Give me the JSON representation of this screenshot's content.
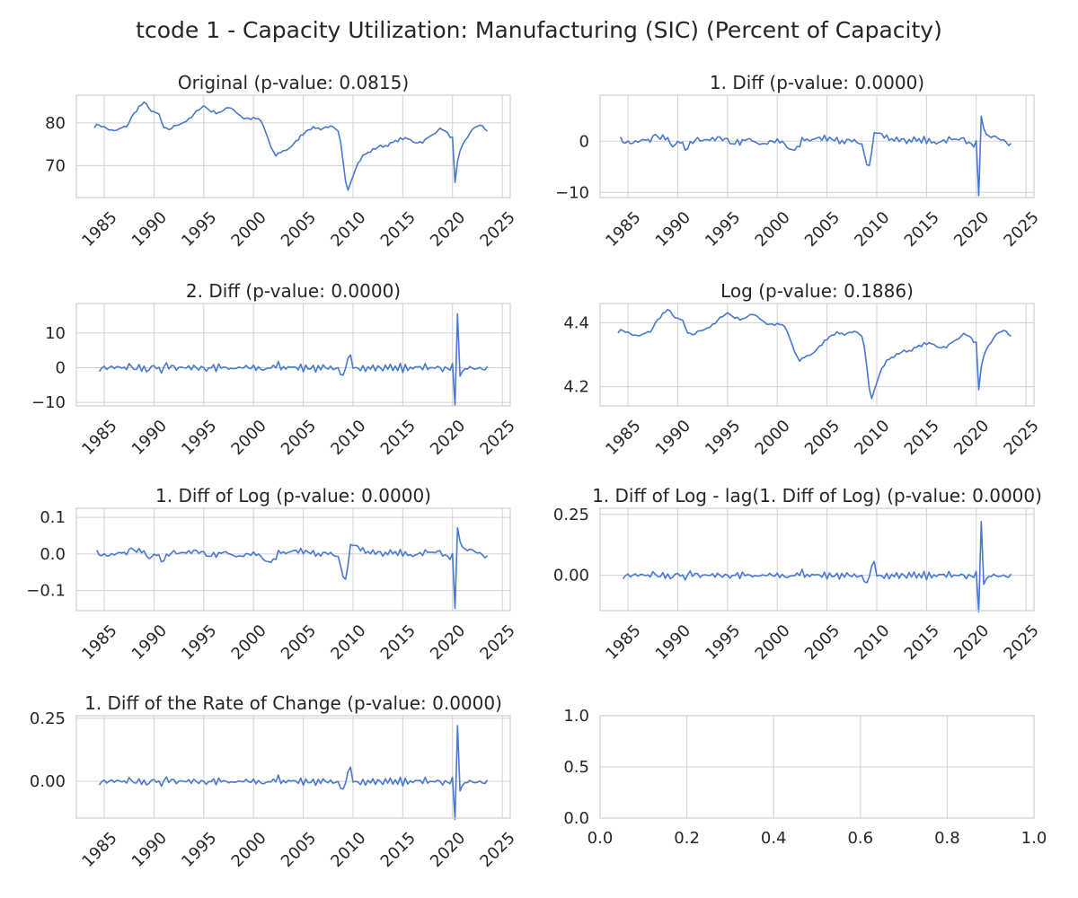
{
  "figure_title": "tcode 1 - Capacity Utilization: Manufacturing (SIC) (Percent of Capacity)",
  "colors": {
    "line": "#4878cf",
    "grid": "#d0d0d0",
    "frame": "#cfcfcf",
    "text": "#262626"
  },
  "chart_data": [
    {
      "type": "line",
      "title": "Original (p-value: 0.0815)",
      "xlim": [
        1982.2,
        2025.8
      ],
      "ylim": [
        62.5,
        86.5
      ],
      "xticks": [
        1985,
        1990,
        1995,
        2000,
        2005,
        2010,
        2015,
        2020,
        2025
      ],
      "yticks": [
        70,
        80
      ],
      "yticklabels": [
        "70",
        "80"
      ],
      "series": [
        {
          "style": "original"
        }
      ]
    },
    {
      "type": "line",
      "title": "1. Diff (p-value: 0.0000)",
      "xlim": [
        1982.2,
        2025.8
      ],
      "ylim": [
        -11,
        9
      ],
      "xticks": [
        1985,
        1990,
        1995,
        2000,
        2005,
        2010,
        2015,
        2020,
        2025
      ],
      "yticks": [
        -10,
        0
      ],
      "yticklabels": [
        "−10",
        "0"
      ],
      "series": [
        {
          "style": "diff"
        }
      ]
    },
    {
      "type": "line",
      "title": "2. Diff (p-value: 0.0000)",
      "xlim": [
        1982.2,
        2025.8
      ],
      "ylim": [
        -11,
        18.5
      ],
      "xticks": [
        1985,
        1990,
        1995,
        2000,
        2005,
        2010,
        2015,
        2020,
        2025
      ],
      "yticks": [
        -10,
        0,
        10
      ],
      "yticklabels": [
        "−10",
        "0",
        "10"
      ],
      "series": [
        {
          "style": "diff2"
        }
      ]
    },
    {
      "type": "line",
      "title": "Log (p-value: 0.1886)",
      "xlim": [
        1982.2,
        2025.8
      ],
      "ylim": [
        4.14,
        4.46
      ],
      "xticks": [
        1985,
        1990,
        1995,
        2000,
        2005,
        2010,
        2015,
        2020,
        2025
      ],
      "yticks": [
        4.2,
        4.4
      ],
      "yticklabels": [
        "4.2",
        "4.4"
      ],
      "series": [
        {
          "style": "log"
        }
      ]
    },
    {
      "type": "line",
      "title": "1. Diff of Log (p-value: 0.0000)",
      "xlim": [
        1982.2,
        2025.8
      ],
      "ylim": [
        -0.155,
        0.125
      ],
      "xticks": [
        1985,
        1990,
        1995,
        2000,
        2005,
        2010,
        2015,
        2020,
        2025
      ],
      "yticks": [
        -0.1,
        0.0,
        0.1
      ],
      "yticklabels": [
        "−0.1",
        "0.0",
        "0.1"
      ],
      "series": [
        {
          "style": "difflog"
        }
      ]
    },
    {
      "type": "line",
      "title": "1. Diff of Log - lag(1. Diff of Log) (p-value: 0.0000)",
      "xlim": [
        1982.2,
        2025.8
      ],
      "ylim": [
        -0.145,
        0.275
      ],
      "xticks": [
        1985,
        1990,
        1995,
        2000,
        2005,
        2010,
        2015,
        2020,
        2025
      ],
      "yticks": [
        0.0,
        0.25
      ],
      "yticklabels": [
        "0.00",
        "0.25"
      ],
      "series": [
        {
          "style": "difflog2"
        }
      ]
    },
    {
      "type": "line",
      "title": "1. Diff of the Rate of Change (p-value: 0.0000)",
      "xlim": [
        1982.2,
        2025.8
      ],
      "ylim": [
        -0.145,
        0.26
      ],
      "xticks": [
        1985,
        1990,
        1995,
        2000,
        2005,
        2010,
        2015,
        2020,
        2025
      ],
      "yticks": [
        0.0,
        0.25
      ],
      "yticklabels": [
        "0.00",
        "0.25"
      ],
      "series": [
        {
          "style": "difflog2"
        }
      ]
    },
    {
      "type": "line",
      "title": "",
      "xlim": [
        0,
        1
      ],
      "ylim": [
        0,
        1
      ],
      "xticks": [
        0,
        0.2,
        0.4,
        0.6,
        0.8,
        1.0
      ],
      "xticklabels": [
        "0.0",
        "0.2",
        "0.4",
        "0.6",
        "0.8",
        "1.0"
      ],
      "yticks": [
        0,
        0.5,
        1.0
      ],
      "yticklabels": [
        "0.0",
        "0.5",
        "1.0"
      ],
      "empty": true,
      "series": []
    }
  ]
}
